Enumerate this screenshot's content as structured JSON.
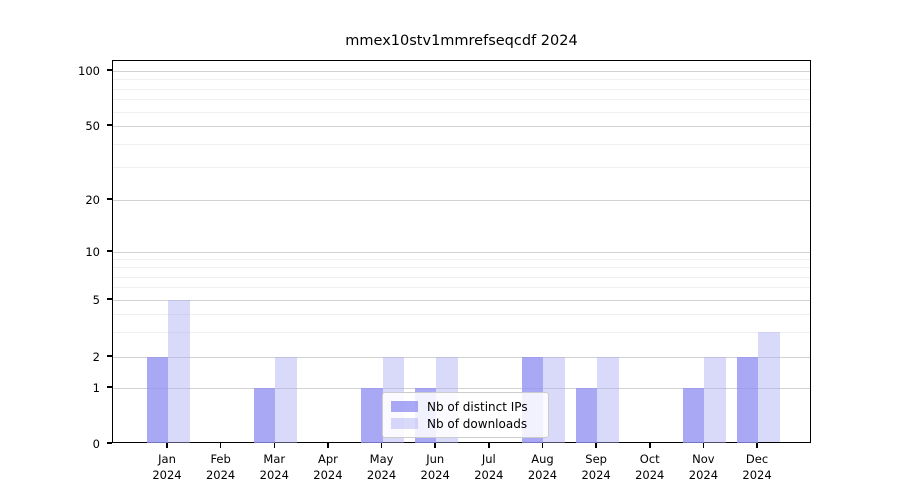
{
  "title": "mmex10stv1mmrefseqcdf 2024",
  "legend": {
    "items": [
      {
        "label": "Nb of distinct IPs",
        "series": "ips"
      },
      {
        "label": "Nb of downloads",
        "series": "downloads"
      }
    ]
  },
  "colors": {
    "ips_bar": "rgba(146,146,243,0.8)",
    "downloads_bar": "rgba(170,170,244,0.45)",
    "ips_solid": "#a8a8f3",
    "downloads_solid": "#d8d8fa",
    "grid_major": "#d2d2d2",
    "grid_minor": "#efefef"
  },
  "chart_data": {
    "type": "bar",
    "title": "mmex10stv1mmrefseqcdf 2024",
    "categories": [
      "Jan",
      "Feb",
      "Mar",
      "Apr",
      "May",
      "Jun",
      "Jul",
      "Aug",
      "Sep",
      "Oct",
      "Nov",
      "Dec"
    ],
    "year_label": "2024",
    "series": [
      {
        "name": "Nb of distinct IPs",
        "values": [
          2,
          0,
          1,
          0,
          1,
          1,
          0,
          2,
          1,
          0,
          1,
          2
        ]
      },
      {
        "name": "Nb of downloads",
        "values": [
          5,
          0,
          2,
          0,
          2,
          2,
          0,
          2,
          2,
          0,
          2,
          3
        ]
      }
    ],
    "yscale": "symlog",
    "y_ticks": [
      0,
      1,
      2,
      5,
      10,
      20,
      50,
      100
    ],
    "y_minor_ticks": [
      3,
      4,
      6,
      7,
      8,
      9,
      30,
      40,
      60,
      70,
      80,
      90
    ],
    "ylim": [
      0,
      120
    ],
    "grid": true,
    "legend_position": "lower center"
  }
}
